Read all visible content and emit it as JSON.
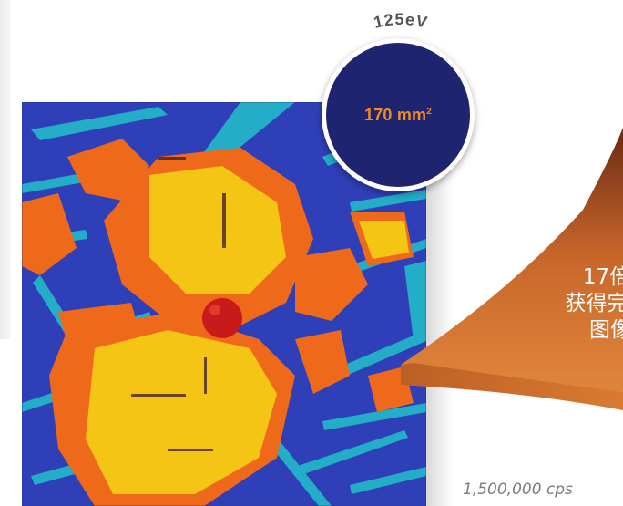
{
  "badge": {
    "resolution_label": "125eV",
    "area_value": "170 mm",
    "area_unit_superscript": "2",
    "colors": {
      "circle_fill": "#1e2470",
      "value_text": "#f28c1c",
      "arc_text": "#555555"
    }
  },
  "wedge": {
    "lines": [
      "17倍",
      "获得完",
      "图像"
    ],
    "colors": {
      "top": "#6a2a14",
      "mid": "#c8662a",
      "bottom": "#e38a3e"
    }
  },
  "speed": {
    "label": "1,500,000 cps"
  },
  "element_map": {
    "palette": {
      "background": "#2f3fb8",
      "needle_cyan": "#23b3c8",
      "orange": "#ee6a1a",
      "yellow": "#f5c516",
      "red": "#c81a1a",
      "dark": "#3a1a2a"
    }
  }
}
